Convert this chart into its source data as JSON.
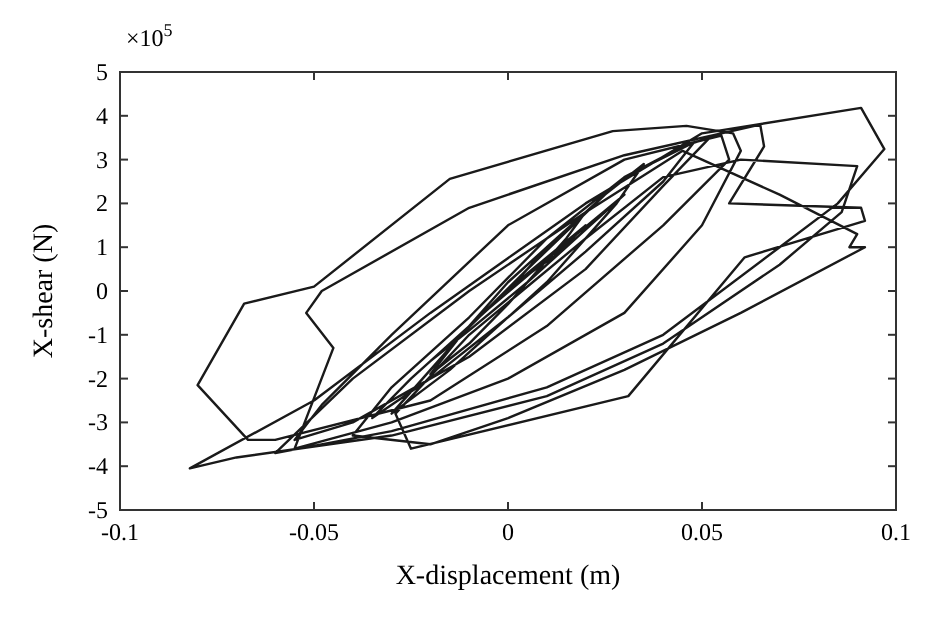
{
  "chart_data": {
    "type": "line",
    "xlabel": "X-displacement (m)",
    "ylabel": "X-shear (N)",
    "annotations": [
      "×10$^{5}$"
    ],
    "xlim": [
      -0.1,
      0.1
    ],
    "xticks": [
      -0.1,
      -0.05,
      0,
      0.05,
      0.1
    ],
    "ylim": [
      -5,
      5
    ],
    "yticks": [
      -5,
      -4,
      -3,
      -2,
      -1,
      0,
      1,
      2,
      3,
      4,
      5
    ],
    "grid": false,
    "marker": "none",
    "line_style": "solid",
    "x": [
      0,
      0.01,
      0.02,
      0.015,
      0,
      -0.01,
      -0.02,
      -0.012,
      0.005,
      0.025,
      0.035,
      0.028,
      0.01,
      -0.015,
      -0.03,
      -0.022,
      0,
      0.03,
      0.045,
      0.052,
      0.04,
      0.02,
      -0.01,
      -0.04,
      -0.055,
      -0.048,
      -0.03,
      0,
      0.03,
      0.055,
      0.057,
      0.04,
      0.01,
      -0.02,
      -0.06,
      -0.067,
      -0.08,
      -0.068,
      -0.05,
      -0.015,
      0.027,
      0.046,
      0.058,
      0.06,
      0.05,
      0.03,
      0,
      -0.03,
      -0.055,
      -0.045,
      -0.052,
      -0.048,
      -0.01,
      0.03,
      0.065,
      0.066,
      0.057,
      0.091,
      0.092,
      0.061,
      0.031,
      -0.025,
      -0.029,
      -0.01,
      0.02,
      0.04,
      0.06,
      0.09,
      0.086,
      0.07,
      0.04,
      0.01,
      -0.03,
      -0.07,
      -0.082,
      -0.05,
      -0.02,
      0.02,
      0.05,
      0.091,
      0.097,
      0.085,
      0.07,
      0.04,
      0.01,
      -0.03,
      -0.06,
      -0.04,
      -0.01,
      0.02,
      0.045,
      0.07,
      0.09,
      0.088,
      0.092,
      0.06,
      0.03,
      0,
      -0.02,
      -0.04,
      -0.03,
      -0.01,
      0.01,
      0.03,
      0.048,
      0.04,
      0.02,
      0,
      -0.02,
      -0.035,
      -0.025,
      -0.005,
      0.015,
      0.03,
      0.02,
      0.005,
      -0.01,
      -0.02,
      -0.01,
      0.005,
      0.02,
      0.012,
      0.004
    ],
    "series": [
      {
        "color": "#1a1a1a",
        "values": [
          0,
          1.0,
          1.8,
          1.2,
          -0.3,
          -1.2,
          -1.9,
          -1.0,
          0.5,
          2.2,
          2.9,
          2.0,
          0.2,
          -1.8,
          -2.8,
          -2.0,
          0.2,
          2.6,
          3.3,
          3.5,
          2.4,
          0.5,
          -1.5,
          -3.0,
          -3.4,
          -2.6,
          -1.0,
          1.5,
          3.0,
          3.55,
          3.0,
          1.5,
          -0.8,
          -2.5,
          -3.4,
          -3.4,
          -2.15,
          -0.29,
          0.1,
          2.56,
          3.65,
          3.77,
          3.6,
          3.2,
          1.5,
          -0.5,
          -2.0,
          -3.0,
          -3.6,
          -1.3,
          -0.5,
          0,
          1.9,
          3.1,
          3.8,
          3.3,
          2.0,
          1.9,
          1.6,
          0.77,
          -2.4,
          -3.6,
          -2.8,
          -1.0,
          1.2,
          2.6,
          3.0,
          2.85,
          1.8,
          0.6,
          -1.2,
          -2.4,
          -3.3,
          -3.8,
          -4.05,
          -2.5,
          -0.5,
          2.0,
          3.6,
          4.18,
          3.24,
          2.0,
          1.0,
          -1.0,
          -2.2,
          -3.2,
          -3.7,
          -2.0,
          0,
          1.8,
          3.2,
          2.2,
          1.3,
          1.0,
          1.0,
          -0.5,
          -1.8,
          -2.9,
          -3.5,
          -3.3,
          -2.2,
          -0.6,
          1.2,
          2.6,
          3.4,
          2.5,
          0.9,
          -0.6,
          -2.0,
          -2.9,
          -2.0,
          -0.4,
          1.1,
          2.2,
          1.4,
          0.2,
          -0.9,
          -1.6,
          -0.8,
          0.4,
          1.5,
          0.8,
          0.3
        ]
      }
    ]
  }
}
